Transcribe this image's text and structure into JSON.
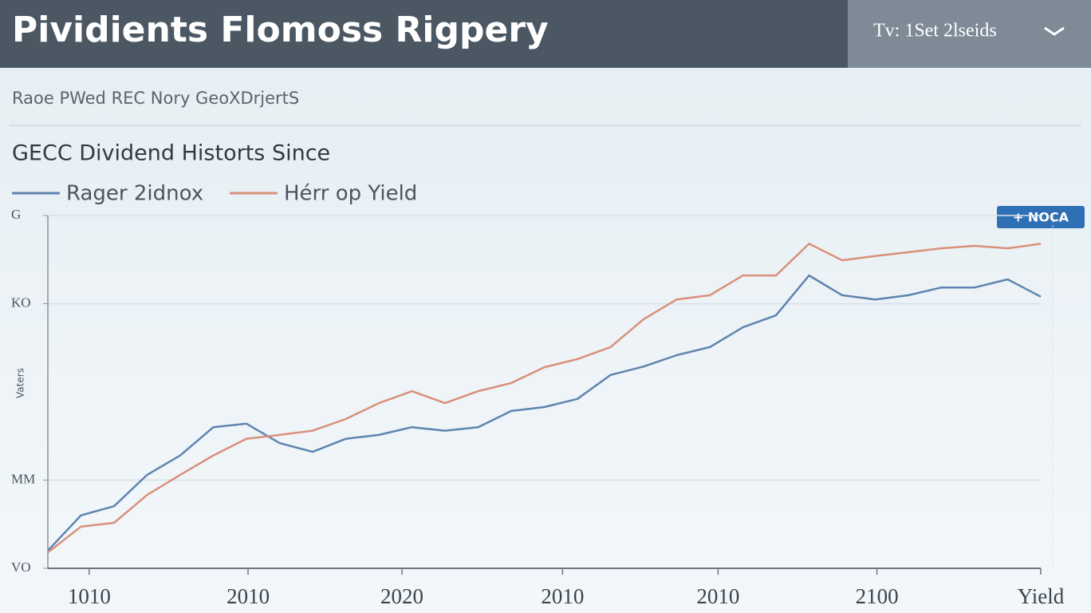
{
  "header": {
    "title": "Pividients Flomoss Rigpery",
    "dropdown": "Tv: 1Set 2lseids"
  },
  "subheader": "Raoe PWed REC Nory GeoXDrjertS",
  "chart_data": {
    "type": "line",
    "title": "GECC Dividend Historts Since",
    "badge": "+ NOCA",
    "ylabel": "Vaters",
    "x": [
      0,
      2,
      4,
      6,
      8,
      10,
      12,
      14,
      16,
      18,
      20,
      22,
      24,
      26,
      28,
      30,
      32,
      34,
      36,
      38,
      40,
      42,
      44,
      46,
      48,
      50,
      52,
      54,
      56,
      58,
      60
    ],
    "xlim": [
      0,
      60
    ],
    "xticks": [
      {
        "value": 2.5,
        "label": "1010"
      },
      {
        "value": 12.1,
        "label": "2010"
      },
      {
        "value": 21.4,
        "label": "2020"
      },
      {
        "value": 31.1,
        "label": "2010"
      },
      {
        "value": 40.5,
        "label": "2010"
      },
      {
        "value": 50.1,
        "label": "2100"
      },
      {
        "value": 60,
        "label": "Yield"
      }
    ],
    "ylim": [
      0,
      100
    ],
    "yticks": [
      {
        "value": 100,
        "label": "G"
      },
      {
        "value": 75,
        "label": "KO"
      },
      {
        "value": 25,
        "label": "MM"
      },
      {
        "value": 0,
        "label": "VO"
      }
    ],
    "grid": true,
    "series": [
      {
        "name": "Rager 2idnox",
        "color": "#5f84b0",
        "values": [
          5,
          15,
          17.6,
          26.5,
          32,
          40,
          41,
          35.5,
          33,
          36.7,
          37.8,
          40,
          39,
          40,
          44.6,
          45.7,
          48,
          54.8,
          57.2,
          60.4,
          62.7,
          68.3,
          71.7,
          83,
          77.4,
          76.2,
          77.4,
          79.6,
          79.6,
          81.9,
          77
        ]
      },
      {
        "name": "Hérr op Yield",
        "color": "#d9907a",
        "values": [
          4.5,
          11.8,
          12.9,
          20.8,
          26.5,
          32,
          36.7,
          37.8,
          39,
          42.3,
          46.8,
          50.2,
          46.8,
          50.2,
          52.5,
          57,
          59.3,
          62.7,
          70.6,
          76.2,
          77.4,
          83,
          83,
          92,
          87.3,
          88.5,
          89.6,
          90.7,
          91.4,
          90.7,
          92
        ]
      }
    ]
  }
}
